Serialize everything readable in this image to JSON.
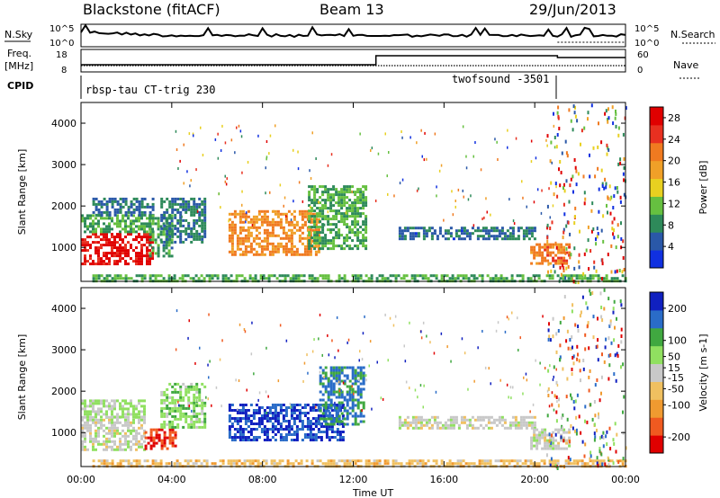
{
  "header": {
    "radar": "Blackstone (fitACF)",
    "beam": "Beam 13",
    "date": "29/Jun/2013"
  },
  "summary": {
    "left_labels": {
      "nsky": "N.Sky",
      "freq": "Freq.",
      "freq_unit": "[MHz]",
      "cpid": "CPID"
    },
    "right_labels": {
      "nsearch": "N.Search",
      "nave": "Nave"
    },
    "noise_ticks_left": [
      "10^5",
      "10^0"
    ],
    "noise_ticks_right": [
      "10^5",
      "10^0"
    ],
    "freq_ticks": [
      "18",
      "8"
    ],
    "nave_ticks": [
      "60",
      "0"
    ],
    "cpid_labels": [
      "rbsp-tau CT-trig 230",
      "twofsound -3501"
    ]
  },
  "colors": {
    "power_scale": [
      "#1030e0",
      "#2a58a8",
      "#2e8a5a",
      "#66c040",
      "#e8d020",
      "#f0a028",
      "#f07a20",
      "#e83020",
      "#e00000"
    ],
    "velocity_scale": [
      "#e00000",
      "#f05a20",
      "#f09a30",
      "#f0c060",
      "#c8c8c8",
      "#90e060",
      "#40a840",
      "#2a6cc8",
      "#1020c0"
    ]
  },
  "chart_data": [
    {
      "type": "heatmap",
      "name": "power-panel",
      "x": {
        "label": "",
        "range_hours": [
          0,
          24
        ],
        "ticks": []
      },
      "ylabel": "Slant Range [km]",
      "yticks": [
        1000,
        2000,
        3000,
        4000
      ],
      "ylim": [
        180,
        4500
      ],
      "colorbar": {
        "label": "Power [dB]",
        "ticks": [
          4,
          8,
          12,
          16,
          20,
          24,
          28
        ],
        "range": [
          0,
          30
        ]
      },
      "regions": [
        {
          "t0": 0.0,
          "t1": 3.2,
          "r0": 600,
          "r1": 1350,
          "value": 28
        },
        {
          "t0": 0.0,
          "t1": 3.2,
          "r0": 1350,
          "r1": 1800,
          "value": 10
        },
        {
          "t0": 0.5,
          "t1": 3.2,
          "r0": 1800,
          "r1": 2200,
          "value": 6
        },
        {
          "t0": 3.0,
          "t1": 4.0,
          "r0": 800,
          "r1": 1800,
          "value": 9
        },
        {
          "t0": 3.5,
          "t1": 5.5,
          "r0": 1100,
          "r1": 2200,
          "value": 7
        },
        {
          "t0": 6.5,
          "t1": 10.5,
          "r0": 800,
          "r1": 1900,
          "value": 20
        },
        {
          "t0": 10.0,
          "t1": 12.5,
          "r0": 1000,
          "r1": 2500,
          "value": 10
        },
        {
          "t0": 14.0,
          "t1": 20.0,
          "r0": 1200,
          "r1": 1500,
          "value": 6
        },
        {
          "t0": 19.8,
          "t1": 21.5,
          "r0": 600,
          "r1": 1100,
          "value": 22
        },
        {
          "t0": 0.5,
          "t1": 24.0,
          "r0": 180,
          "r1": 350,
          "value": 10
        }
      ]
    },
    {
      "type": "heatmap",
      "name": "velocity-panel",
      "x": {
        "label": "Time UT",
        "range_hours": [
          0,
          24
        ],
        "ticks": [
          "00:00",
          "04:00",
          "08:00",
          "12:00",
          "16:00",
          "20:00",
          "00:00"
        ]
      },
      "ylabel": "Slant Range [km]",
      "yticks": [
        1000,
        2000,
        3000,
        4000
      ],
      "ylim": [
        180,
        4500
      ],
      "colorbar": {
        "label": "Velocity [m s-1]",
        "ticks": [
          -200,
          -100,
          -50,
          -15,
          15,
          50,
          100,
          200
        ],
        "range": [
          -250,
          250
        ]
      },
      "regions": [
        {
          "t0": 0.0,
          "t1": 2.8,
          "r0": 600,
          "r1": 1400,
          "value": 10
        },
        {
          "t0": 0.0,
          "t1": 2.8,
          "r0": 1400,
          "r1": 1800,
          "value": 40
        },
        {
          "t0": 2.8,
          "t1": 4.2,
          "r0": 600,
          "r1": 1100,
          "value": -200
        },
        {
          "t0": 3.5,
          "t1": 5.5,
          "r0": 1100,
          "r1": 2200,
          "value": 60
        },
        {
          "t0": 6.5,
          "t1": 11.5,
          "r0": 800,
          "r1": 1700,
          "value": 200
        },
        {
          "t0": 10.5,
          "t1": 12.5,
          "r0": 1200,
          "r1": 2600,
          "value": 150
        },
        {
          "t0": 14.0,
          "t1": 20.0,
          "r0": 1100,
          "r1": 1400,
          "value": 0
        },
        {
          "t0": 19.8,
          "t1": 21.5,
          "r0": 600,
          "r1": 1100,
          "value": 5
        },
        {
          "t0": 0.5,
          "t1": 24.0,
          "r0": 180,
          "r1": 350,
          "value": -60
        }
      ]
    }
  ]
}
